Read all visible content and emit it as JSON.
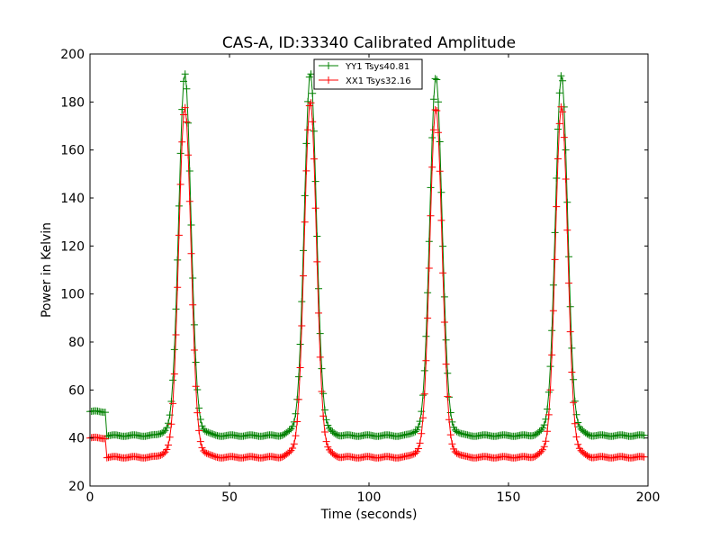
{
  "chart_data": {
    "type": "line",
    "title": "CAS-A, ID:33340 Calibrated Amplitude",
    "xlabel": "Time (seconds)",
    "ylabel": "Power in Kelvin",
    "xlim": [
      0,
      200
    ],
    "ylim": [
      20,
      200
    ],
    "xticks": [
      0,
      50,
      100,
      150,
      200
    ],
    "yticks": [
      20,
      40,
      60,
      80,
      100,
      120,
      140,
      160,
      180,
      200
    ],
    "grid": false,
    "legend_position": "top-center",
    "marker": "plus",
    "series": [
      {
        "name": "YY1 Tsys40.81",
        "color": "#008000",
        "baseline_segments": [
          {
            "t": [
              0,
              6
            ],
            "level": 51
          },
          {
            "t": [
              6,
              200
            ],
            "level": 41
          }
        ],
        "peaks": [
          {
            "t": 34,
            "height": 192
          },
          {
            "t": 79,
            "height": 192
          },
          {
            "t": 124,
            "height": 191
          },
          {
            "t": 169,
            "height": 191
          }
        ],
        "width_sigma": 2.2
      },
      {
        "name": "XX1 Tsys32.16",
        "color": "#ff0000",
        "baseline_segments": [
          {
            "t": [
              0,
              6
            ],
            "level": 40
          },
          {
            "t": [
              6,
              200
            ],
            "level": 32
          }
        ],
        "peaks": [
          {
            "t": 34,
            "height": 178
          },
          {
            "t": 79,
            "height": 180
          },
          {
            "t": 124,
            "height": 178
          },
          {
            "t": 169,
            "height": 178
          }
        ],
        "width_sigma": 2.2
      }
    ]
  }
}
